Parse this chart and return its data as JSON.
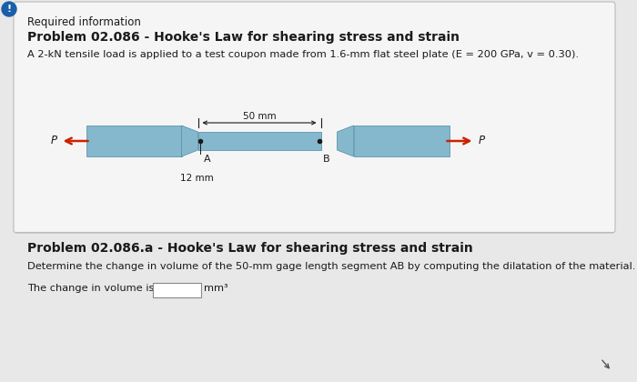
{
  "title1": "Required information",
  "title2": "Problem 02.086 - Hooke's Law for shearing stress and strain",
  "subtitle": "A 2-kN tensile load is applied to a test coupon made from 1.6-mm flat steel plate (E = 200 GPa, v = 0.30).",
  "title3": "Problem 02.086.a - Hooke's Law for shearing stress and strain",
  "desc": "Determine the change in volume of the 50-mm gage length segment AB by computing the dilatation of the material.",
  "answer_label": "The change in volume is ",
  "unit": "mm³",
  "dim_50mm": "50 mm",
  "dim_12mm": "12 mm",
  "label_A": "A",
  "label_B": "B",
  "label_P": "P",
  "bg_color": "#e8e8e8",
  "panel_color": "#f5f5f5",
  "coupon_color": "#85b8cc",
  "arrow_color": "#cc2200",
  "text_color": "#1a1a1a",
  "icon_color": "#1a5fa8"
}
